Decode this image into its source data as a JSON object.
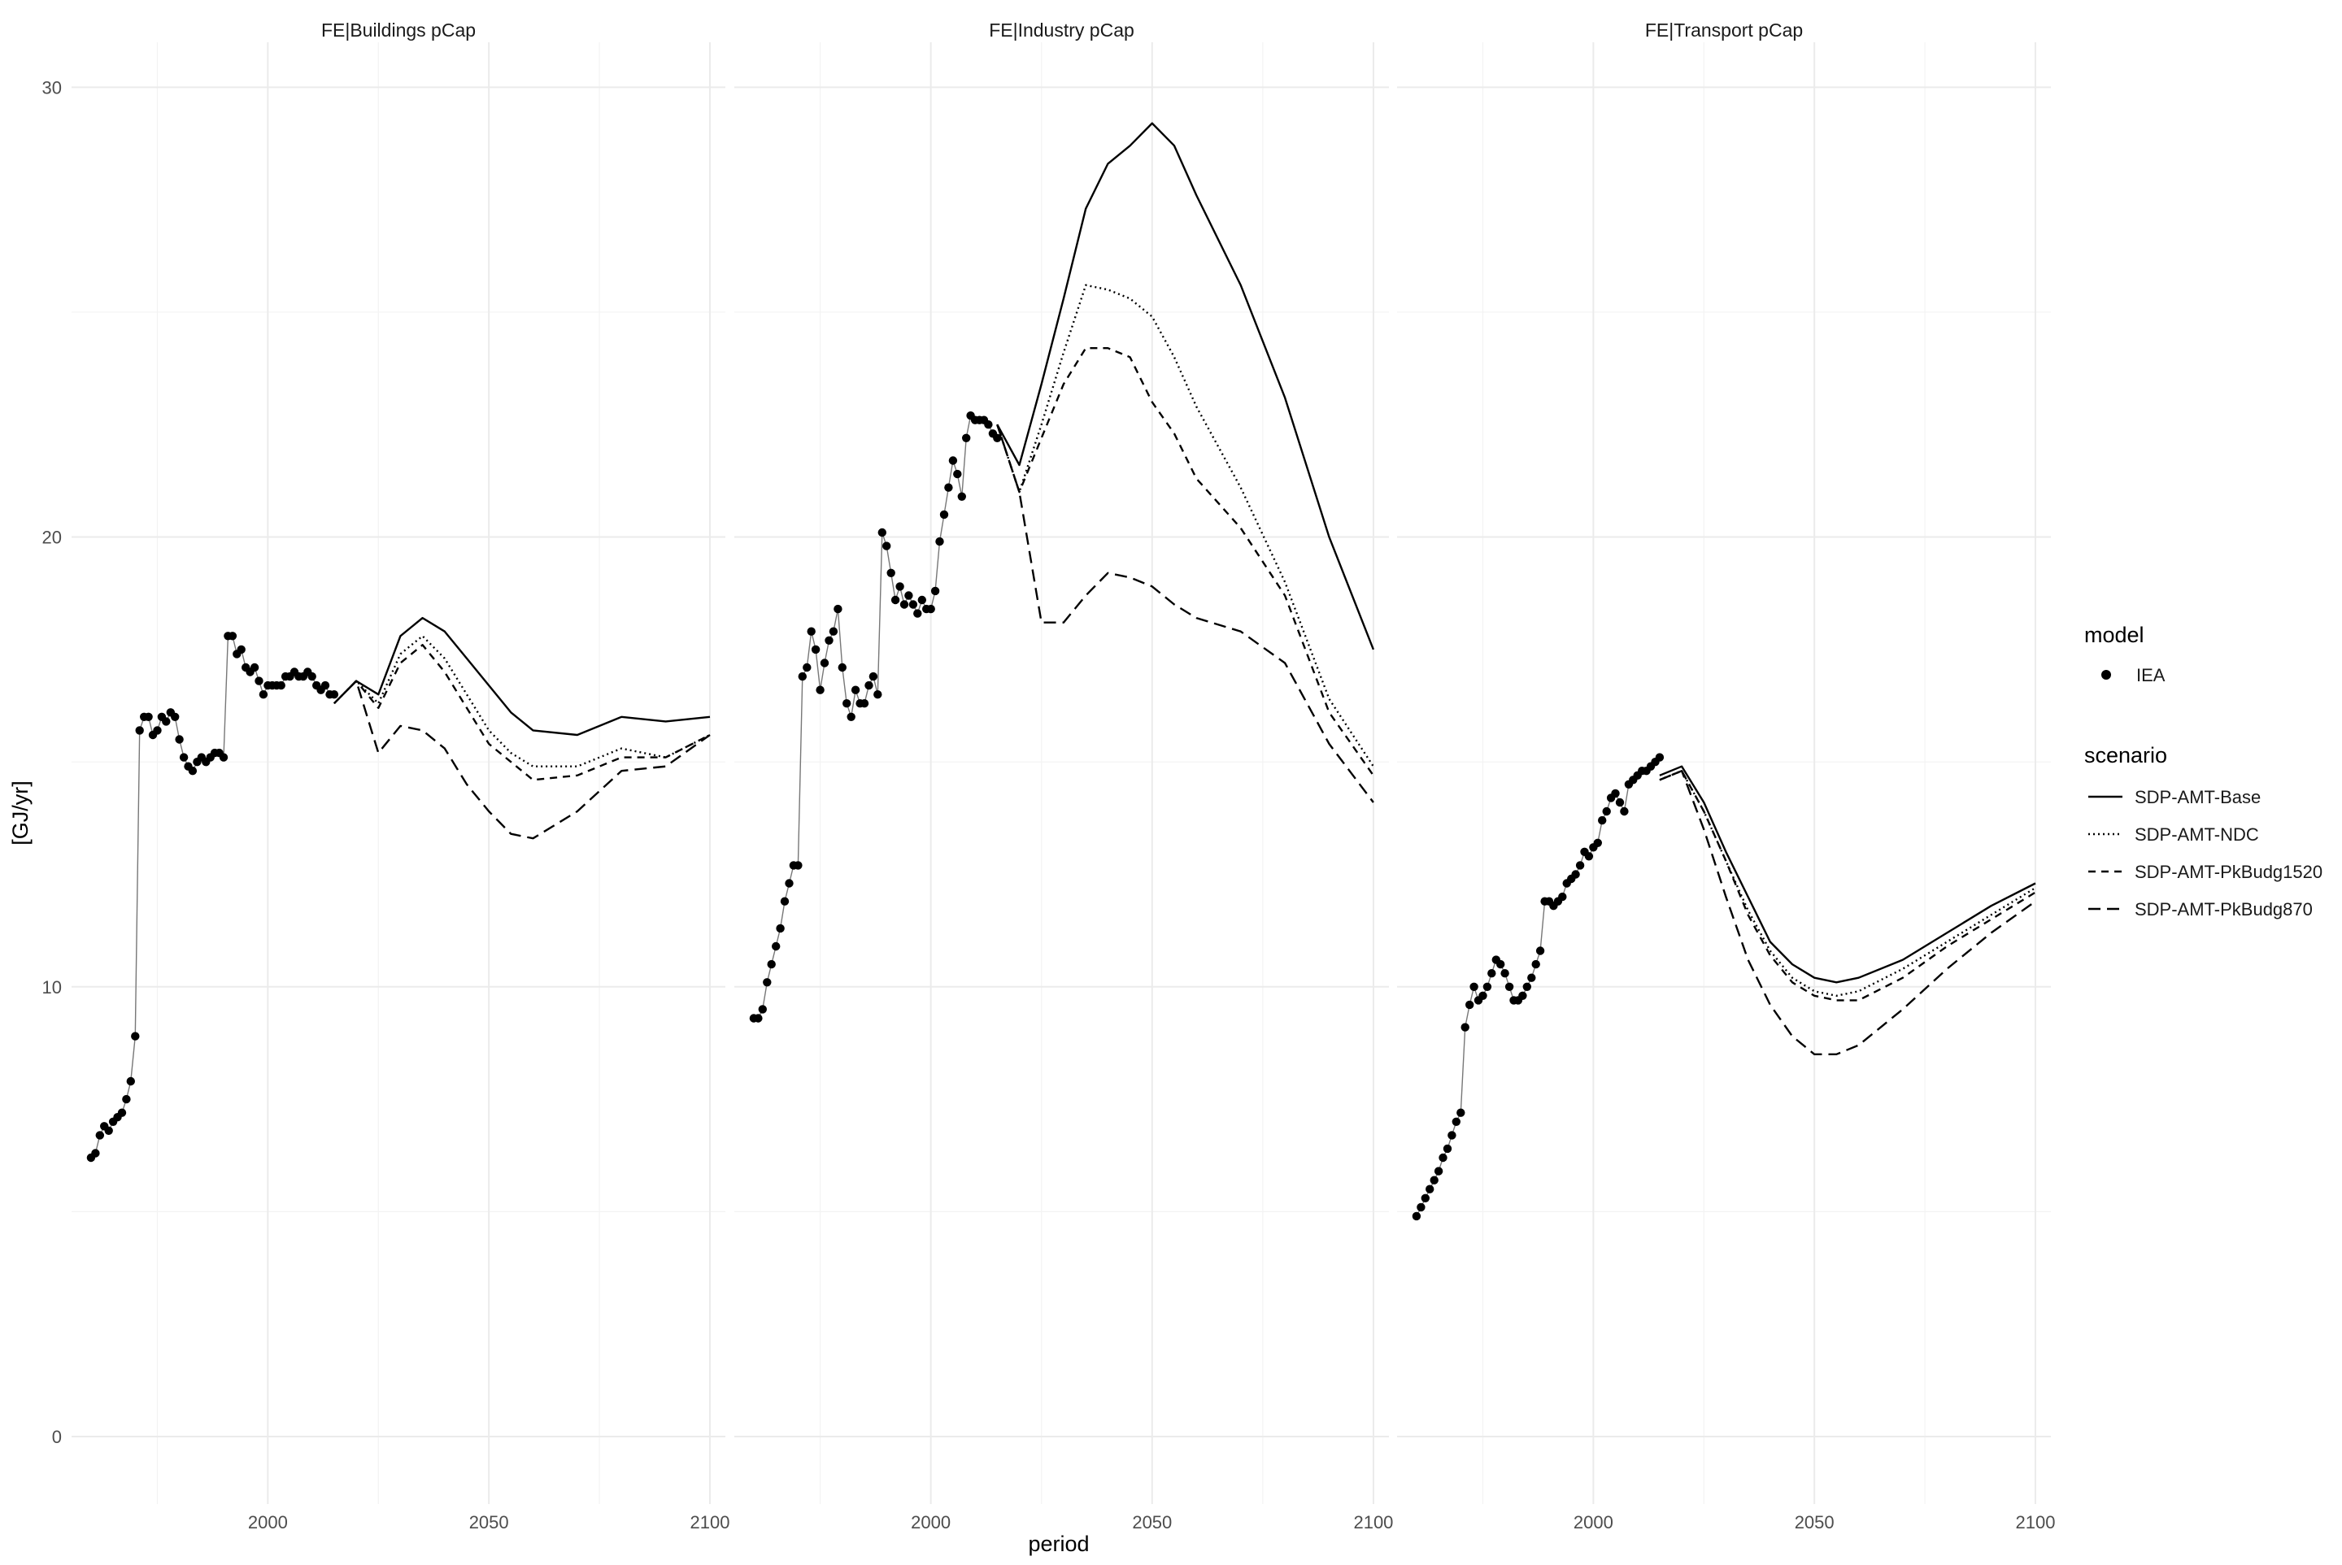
{
  "chart_data": {
    "type": "line",
    "xlabel": "period",
    "ylabel": "[GJ/yr]",
    "ylim": [
      -1.5,
      31
    ],
    "y_ticks": [
      0,
      10,
      20,
      30
    ],
    "x_ticks": [
      2000,
      2050,
      2100
    ],
    "grid": true,
    "legend_position": "right",
    "legends": {
      "model": {
        "title": "model",
        "entries": [
          "IEA"
        ]
      },
      "scenario": {
        "title": "scenario",
        "entries": [
          {
            "name": "SDP-AMT-Base",
            "dash": "solid"
          },
          {
            "name": "SDP-AMT-NDC",
            "dash": "dotted"
          },
          {
            "name": "SDP-AMT-PkBudg1520",
            "dash": "dashed"
          },
          {
            "name": "SDP-AMT-PkBudg870",
            "dash": "longdash"
          }
        ]
      }
    },
    "panels": [
      {
        "title": "FE|Buildings pCap",
        "history": {
          "model": "IEA",
          "x": [
            1960,
            1961,
            1962,
            1963,
            1964,
            1965,
            1966,
            1967,
            1968,
            1969,
            1970,
            1971,
            1972,
            1973,
            1974,
            1975,
            1976,
            1977,
            1978,
            1979,
            1980,
            1981,
            1982,
            1983,
            1984,
            1985,
            1986,
            1987,
            1988,
            1989,
            1990,
            1991,
            1992,
            1993,
            1994,
            1995,
            1996,
            1997,
            1998,
            1999,
            2000,
            2001,
            2002,
            2003,
            2004,
            2005,
            2006,
            2007,
            2008,
            2009,
            2010,
            2011,
            2012,
            2013,
            2014,
            2015
          ],
          "y": [
            6.2,
            6.3,
            6.7,
            6.9,
            6.8,
            7.0,
            7.1,
            7.2,
            7.5,
            7.9,
            8.9,
            15.7,
            16.0,
            16.0,
            15.6,
            15.7,
            16.0,
            15.9,
            16.1,
            16.0,
            15.5,
            15.1,
            14.9,
            14.8,
            15.0,
            15.1,
            15.0,
            15.1,
            15.2,
            15.2,
            15.1,
            17.8,
            17.8,
            17.4,
            17.5,
            17.1,
            17.0,
            17.1,
            16.8,
            16.5,
            16.7,
            16.7,
            16.7,
            16.7,
            16.9,
            16.9,
            17.0,
            16.9,
            16.9,
            17.0,
            16.9,
            16.7,
            16.6,
            16.7,
            16.5,
            16.5
          ]
        },
        "series": [
          {
            "name": "SDP-AMT-Base",
            "x": [
              2015,
              2020,
              2025,
              2030,
              2035,
              2040,
              2045,
              2050,
              2055,
              2060,
              2070,
              2080,
              2090,
              2100
            ],
            "y": [
              16.3,
              16.8,
              16.5,
              17.8,
              18.2,
              17.9,
              17.3,
              16.7,
              16.1,
              15.7,
              15.6,
              16.0,
              15.9,
              16.0
            ]
          },
          {
            "name": "SDP-AMT-NDC",
            "x": [
              2015,
              2020,
              2025,
              2030,
              2035,
              2040,
              2045,
              2050,
              2055,
              2060,
              2070,
              2080,
              2090,
              2100
            ],
            "y": [
              16.3,
              16.8,
              16.3,
              17.4,
              17.8,
              17.3,
              16.5,
              15.7,
              15.2,
              14.9,
              14.9,
              15.3,
              15.1,
              15.6
            ]
          },
          {
            "name": "SDP-AMT-PkBudg1520",
            "x": [
              2015,
              2020,
              2025,
              2030,
              2035,
              2040,
              2045,
              2050,
              2055,
              2060,
              2070,
              2080,
              2090,
              2100
            ],
            "y": [
              16.3,
              16.8,
              16.2,
              17.2,
              17.6,
              17.0,
              16.2,
              15.4,
              15.0,
              14.6,
              14.7,
              15.1,
              15.1,
              15.6
            ]
          },
          {
            "name": "SDP-AMT-PkBudg870",
            "x": [
              2015,
              2020,
              2025,
              2030,
              2035,
              2040,
              2045,
              2050,
              2055,
              2060,
              2070,
              2080,
              2090,
              2100
            ],
            "y": [
              16.3,
              16.8,
              15.2,
              15.8,
              15.7,
              15.3,
              14.5,
              13.9,
              13.4,
              13.3,
              13.9,
              14.8,
              14.9,
              15.6
            ]
          }
        ]
      },
      {
        "title": "FE|Industry pCap",
        "history": {
          "model": "IEA",
          "x": [
            1960,
            1961,
            1962,
            1963,
            1964,
            1965,
            1966,
            1967,
            1968,
            1969,
            1970,
            1971,
            1972,
            1973,
            1974,
            1975,
            1976,
            1977,
            1978,
            1979,
            1980,
            1981,
            1982,
            1983,
            1984,
            1985,
            1986,
            1987,
            1988,
            1989,
            1990,
            1991,
            1992,
            1993,
            1994,
            1995,
            1996,
            1997,
            1998,
            1999,
            2000,
            2001,
            2002,
            2003,
            2004,
            2005,
            2006,
            2007,
            2008,
            2009,
            2010,
            2011,
            2012,
            2013,
            2014,
            2015
          ],
          "y": [
            9.3,
            9.3,
            9.5,
            10.1,
            10.5,
            10.9,
            11.3,
            11.9,
            12.3,
            12.7,
            12.7,
            16.9,
            17.1,
            17.9,
            17.5,
            16.6,
            17.2,
            17.7,
            17.9,
            18.4,
            17.1,
            16.3,
            16.0,
            16.6,
            16.3,
            16.3,
            16.7,
            16.9,
            16.5,
            20.1,
            19.8,
            19.2,
            18.6,
            18.9,
            18.5,
            18.7,
            18.5,
            18.3,
            18.6,
            18.4,
            18.4,
            18.8,
            19.9,
            20.5,
            21.1,
            21.7,
            21.4,
            20.9,
            22.2,
            22.7,
            22.6,
            22.6,
            22.6,
            22.5,
            22.3,
            22.2
          ]
        },
        "series": [
          {
            "name": "SDP-AMT-Base",
            "x": [
              2015,
              2020,
              2025,
              2030,
              2035,
              2040,
              2045,
              2050,
              2055,
              2060,
              2070,
              2080,
              2090,
              2100
            ],
            "y": [
              22.5,
              21.6,
              23.4,
              25.3,
              27.3,
              28.3,
              28.7,
              29.2,
              28.7,
              27.6,
              25.6,
              23.1,
              20.0,
              17.5
            ]
          },
          {
            "name": "SDP-AMT-NDC",
            "x": [
              2015,
              2020,
              2025,
              2030,
              2035,
              2040,
              2045,
              2050,
              2055,
              2060,
              2070,
              2080,
              2090,
              2100
            ],
            "y": [
              22.5,
              21.0,
              22.5,
              24.1,
              25.6,
              25.5,
              25.3,
              24.9,
              24.0,
              22.9,
              21.1,
              19.0,
              16.4,
              14.9
            ]
          },
          {
            "name": "SDP-AMT-PkBudg1520",
            "x": [
              2015,
              2020,
              2025,
              2030,
              2035,
              2040,
              2045,
              2050,
              2055,
              2060,
              2070,
              2080,
              2090,
              2100
            ],
            "y": [
              22.5,
              21.0,
              22.2,
              23.4,
              24.2,
              24.2,
              24.0,
              23.0,
              22.3,
              21.3,
              20.2,
              18.7,
              16.1,
              14.7
            ]
          },
          {
            "name": "SDP-AMT-PkBudg870",
            "x": [
              2015,
              2020,
              2025,
              2030,
              2035,
              2040,
              2045,
              2050,
              2055,
              2060,
              2070,
              2080,
              2090,
              2100
            ],
            "y": [
              22.5,
              21.0,
              18.1,
              18.1,
              18.7,
              19.2,
              19.1,
              18.9,
              18.5,
              18.2,
              17.9,
              17.2,
              15.4,
              14.1
            ]
          }
        ]
      },
      {
        "title": "FE|Transport pCap",
        "history": {
          "model": "IEA",
          "x": [
            1960,
            1961,
            1962,
            1963,
            1964,
            1965,
            1966,
            1967,
            1968,
            1969,
            1970,
            1971,
            1972,
            1973,
            1974,
            1975,
            1976,
            1977,
            1978,
            1979,
            1980,
            1981,
            1982,
            1983,
            1984,
            1985,
            1986,
            1987,
            1988,
            1989,
            1990,
            1991,
            1992,
            1993,
            1994,
            1995,
            1996,
            1997,
            1998,
            1999,
            2000,
            2001,
            2002,
            2003,
            2004,
            2005,
            2006,
            2007,
            2008,
            2009,
            2010,
            2011,
            2012,
            2013,
            2014,
            2015
          ],
          "y": [
            4.9,
            5.1,
            5.3,
            5.5,
            5.7,
            5.9,
            6.2,
            6.4,
            6.7,
            7.0,
            7.2,
            9.1,
            9.6,
            10.0,
            9.7,
            9.8,
            10.0,
            10.3,
            10.6,
            10.5,
            10.3,
            10.0,
            9.7,
            9.7,
            9.8,
            10.0,
            10.2,
            10.5,
            10.8,
            11.9,
            11.9,
            11.8,
            11.9,
            12.0,
            12.3,
            12.4,
            12.5,
            12.7,
            13.0,
            12.9,
            13.1,
            13.2,
            13.7,
            13.9,
            14.2,
            14.3,
            14.1,
            13.9,
            14.5,
            14.6,
            14.7,
            14.8,
            14.8,
            14.9,
            15.0,
            15.1
          ]
        },
        "series": [
          {
            "name": "SDP-AMT-Base",
            "x": [
              2015,
              2020,
              2025,
              2030,
              2035,
              2040,
              2045,
              2050,
              2055,
              2060,
              2070,
              2080,
              2090,
              2100
            ],
            "y": [
              14.7,
              14.9,
              14.1,
              13.0,
              12.0,
              11.0,
              10.5,
              10.2,
              10.1,
              10.2,
              10.6,
              11.2,
              11.8,
              12.3
            ]
          },
          {
            "name": "SDP-AMT-NDC",
            "x": [
              2015,
              2020,
              2025,
              2030,
              2035,
              2040,
              2045,
              2050,
              2055,
              2060,
              2070,
              2080,
              2090,
              2100
            ],
            "y": [
              14.6,
              14.8,
              13.9,
              12.8,
              11.7,
              10.8,
              10.2,
              9.9,
              9.8,
              9.9,
              10.4,
              11.0,
              11.6,
              12.2
            ]
          },
          {
            "name": "SDP-AMT-PkBudg1520",
            "x": [
              2015,
              2020,
              2025,
              2030,
              2035,
              2040,
              2045,
              2050,
              2055,
              2060,
              2070,
              2080,
              2090,
              2100
            ],
            "y": [
              14.6,
              14.8,
              13.9,
              12.8,
              11.6,
              10.7,
              10.1,
              9.8,
              9.7,
              9.7,
              10.2,
              10.9,
              11.5,
              12.1
            ]
          },
          {
            "name": "SDP-AMT-PkBudg870",
            "x": [
              2015,
              2020,
              2025,
              2030,
              2035,
              2040,
              2045,
              2050,
              2055,
              2060,
              2070,
              2080,
              2090,
              2100
            ],
            "y": [
              14.6,
              14.8,
              13.5,
              12.0,
              10.6,
              9.6,
              8.9,
              8.5,
              8.5,
              8.7,
              9.5,
              10.4,
              11.2,
              11.9
            ]
          }
        ]
      }
    ]
  }
}
